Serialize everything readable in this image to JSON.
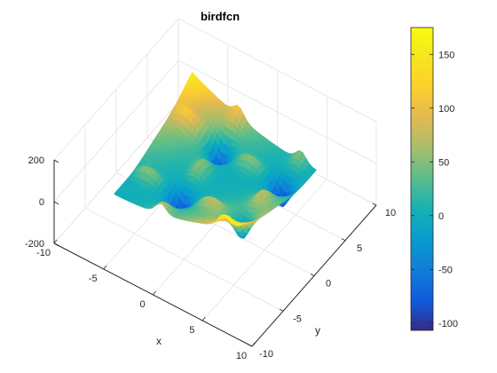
{
  "chart_data": {
    "type": "surface",
    "title": "birdfcn",
    "function": "sin(x)*exp((1-cos(y))^2) + cos(y)*exp((1-sin(x))^2) + (x-y)^2",
    "xlabel": "x",
    "ylabel": "y",
    "zlabel": "",
    "xlim": [
      -10,
      10
    ],
    "ylim": [
      -10,
      10
    ],
    "zlim": [
      -200,
      200
    ],
    "x_ticks": [
      "-10",
      "-5",
      "0",
      "5",
      "10"
    ],
    "y_ticks": [
      "-10",
      "-5",
      "0",
      "5",
      "10"
    ],
    "z_ticks": [
      "-200",
      "0",
      "200"
    ],
    "colorbar": {
      "colormap": "parula",
      "range": [
        -106.8,
        175
      ],
      "ticks": [
        "-100",
        "-50",
        "0",
        "50",
        "100",
        "150"
      ]
    },
    "grid": true
  }
}
